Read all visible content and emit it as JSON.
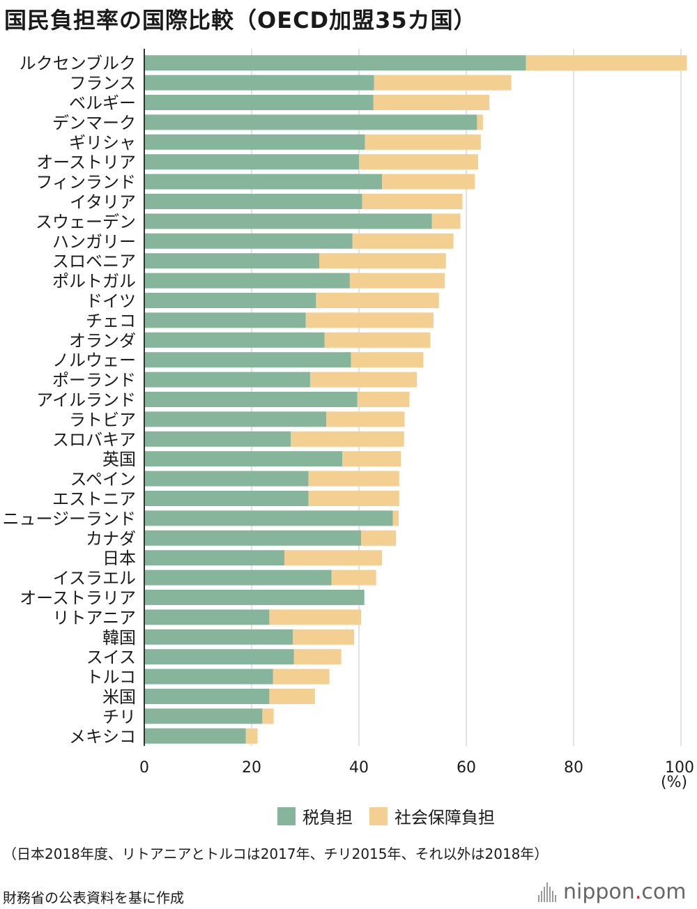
{
  "title": "国民負担率の国際比較（OECD加盟35カ国）",
  "unit_label": "(%)",
  "note": "（日本2018年度、リトアニアとトルコは2017年、チリ2015年、それ以外は2018年）",
  "source": "財務省の公表資料を基に作成",
  "logo": {
    "name": "nippon",
    "dot": ".",
    "suffix": "com"
  },
  "colors": {
    "tax": "#86b59b",
    "social": "#f3cf92",
    "grid": "#d9d9d9",
    "axis": "#333333"
  },
  "chart_data": {
    "type": "bar",
    "orientation": "horizontal",
    "stacked": true,
    "categories": [
      "ルクセンブルク",
      "フランス",
      "ベルギー",
      "デンマーク",
      "ギリシャ",
      "オーストリア",
      "フィンランド",
      "イタリア",
      "スウェーデン",
      "ハンガリー",
      "スロベニア",
      "ポルトガル",
      "ドイツ",
      "チェコ",
      "オランダ",
      "ノルウェー",
      "ポーランド",
      "アイルランド",
      "ラトビア",
      "スロバキア",
      "英国",
      "スペイン",
      "エストニア",
      "ニュージーランド",
      "カナダ",
      "日本",
      "イスラエル",
      "オーストラリア",
      "リトアニア",
      "韓国",
      "スイス",
      "トルコ",
      "米国",
      "チリ",
      "メキシコ"
    ],
    "series": [
      {
        "name": "税負担",
        "values": [
          71.1,
          42.8,
          42.7,
          62.0,
          41.1,
          40.0,
          44.3,
          40.6,
          53.6,
          38.8,
          32.6,
          38.3,
          32.0,
          30.1,
          33.6,
          38.5,
          30.9,
          39.7,
          33.9,
          27.3,
          36.9,
          30.6,
          30.6,
          46.3,
          40.4,
          26.1,
          34.9,
          41.0,
          23.3,
          27.7,
          27.9,
          24.0,
          23.3,
          22.0,
          18.9
        ]
      },
      {
        "name": "社会保障負担",
        "values": [
          30.0,
          25.6,
          21.6,
          1.1,
          21.6,
          22.2,
          17.3,
          18.7,
          5.3,
          18.8,
          23.6,
          17.7,
          22.9,
          23.8,
          19.7,
          13.5,
          19.9,
          9.7,
          14.6,
          21.1,
          10.9,
          16.9,
          16.9,
          1.1,
          6.5,
          18.2,
          8.3,
          0.0,
          17.1,
          11.4,
          8.8,
          10.5,
          8.5,
          2.1,
          2.2
        ]
      }
    ],
    "xlim": [
      0,
      100
    ],
    "xticks": [
      0,
      20,
      40,
      60,
      80,
      100
    ],
    "grid": "vertical",
    "legend": "bottom-center"
  }
}
